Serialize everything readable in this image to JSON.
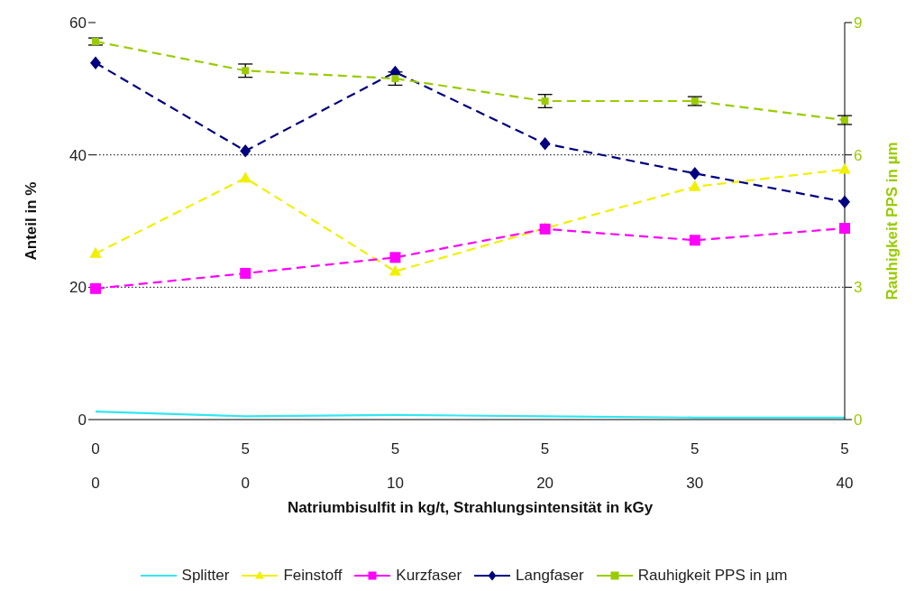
{
  "chart_data": {
    "type": "line",
    "categories": [
      "0\n0",
      "5\n0",
      "5\n10",
      "5\n20",
      "5\n30",
      "5\n40"
    ],
    "xlabel": "Natriumbisulfit in kg/t, Strahlungsintensität in kGy",
    "ylabel": "Anteil in %",
    "y2label": "Rauhigkeit PPS in µm",
    "ylim": [
      0,
      60
    ],
    "yticks": [
      0,
      20,
      40,
      60
    ],
    "y2lim": [
      0,
      9
    ],
    "y2ticks": [
      0,
      3,
      6,
      9
    ],
    "grid": "y",
    "legend": "bottom",
    "series": [
      {
        "name": "Splitter",
        "color": "#33e6f0",
        "values": [
          1.2,
          0.5,
          0.7,
          0.5,
          0.3,
          0.3
        ],
        "marker": "none",
        "line_style": "solid"
      },
      {
        "name": "Feinstoff",
        "color": "#f0f000",
        "values": [
          25.1,
          36.5,
          22.4,
          28.9,
          35.2,
          37.8
        ],
        "marker": "triangle",
        "line_style": "dashed"
      },
      {
        "name": "Kurzfaser",
        "color": "#ff00ff",
        "values": [
          19.8,
          22.1,
          24.5,
          28.8,
          27.1,
          28.9
        ],
        "marker": "square",
        "line_style": "dashed"
      },
      {
        "name": "Langfaser",
        "color": "#000080",
        "values": [
          53.9,
          40.6,
          52.5,
          41.7,
          37.2,
          32.9
        ],
        "marker": "diamond",
        "line_style": "dashed"
      },
      {
        "name": "Rauhigkeit PPS in µm",
        "color": "#99cc00",
        "values": [
          8.57,
          7.91,
          7.73,
          7.22,
          7.22,
          6.79
        ],
        "errors": [
          0.08,
          0.15,
          0.15,
          0.15,
          0.1,
          0.1
        ],
        "marker": "square",
        "line_style": "dashed",
        "axis": "y2"
      }
    ]
  }
}
